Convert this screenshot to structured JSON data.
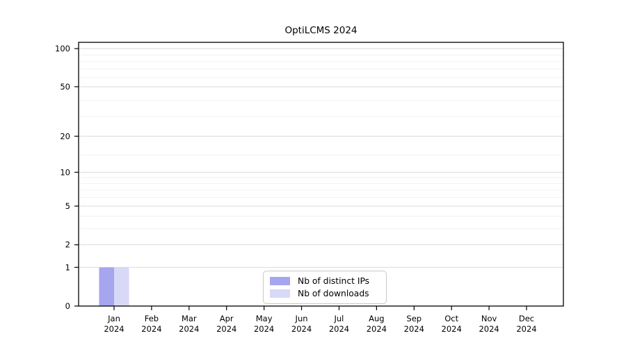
{
  "chart_data": {
    "type": "bar",
    "title": "OptiLCMS 2024",
    "categories": [
      {
        "month": "Jan",
        "year": "2024"
      },
      {
        "month": "Feb",
        "year": "2024"
      },
      {
        "month": "Mar",
        "year": "2024"
      },
      {
        "month": "Apr",
        "year": "2024"
      },
      {
        "month": "May",
        "year": "2024"
      },
      {
        "month": "Jun",
        "year": "2024"
      },
      {
        "month": "Jul",
        "year": "2024"
      },
      {
        "month": "Aug",
        "year": "2024"
      },
      {
        "month": "Sep",
        "year": "2024"
      },
      {
        "month": "Oct",
        "year": "2024"
      },
      {
        "month": "Nov",
        "year": "2024"
      },
      {
        "month": "Dec",
        "year": "2024"
      }
    ],
    "series": [
      {
        "name": "Nb of distinct IPs",
        "color": "#a5a5f0",
        "values": [
          1,
          0,
          0,
          0,
          0,
          0,
          0,
          0,
          0,
          0,
          0,
          0
        ]
      },
      {
        "name": "Nb of downloads",
        "color": "#d8d8f7",
        "values": [
          1,
          0,
          0,
          0,
          0,
          0,
          0,
          0,
          0,
          0,
          0,
          0
        ]
      }
    ],
    "yticks": [
      0,
      1,
      2,
      5,
      10,
      20,
      50,
      100
    ],
    "minor_gridlines": [
      3,
      4,
      6,
      7,
      8,
      9,
      14,
      29,
      39,
      59,
      69,
      79,
      89
    ],
    "scale": "log10(1+v)",
    "ylim": [
      0,
      112
    ],
    "grid": true,
    "legend_position": "lower center",
    "colors": {
      "major_grid": "#d9d9d9",
      "minor_grid": "#f1f1f1",
      "axis": "#000000",
      "text": "#000000",
      "background": "#ffffff"
    }
  }
}
